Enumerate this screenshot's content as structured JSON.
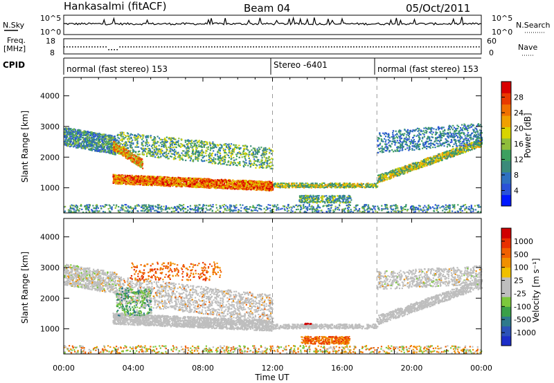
{
  "header": {
    "station": "Hankasalmi (fitACF)",
    "beam": "Beam 04",
    "date": "05/Oct/2011"
  },
  "noise_panel": {
    "left_label": "N.Sky",
    "left_ticks": [
      "10^5",
      "10^0"
    ],
    "right_label": "N.Search",
    "right_ticks": [
      "10^5",
      "10^0"
    ]
  },
  "freq_panel": {
    "left_label_1": "Freq.",
    "left_label_2": "[MHz]",
    "left_ticks": [
      "18",
      "8"
    ],
    "right_label": "Nave",
    "right_ticks": [
      "60",
      "0"
    ]
  },
  "cpid": {
    "label": "CPID",
    "segments": [
      {
        "label": "normal (fast stereo) 153",
        "start_h": 0,
        "end_h": 12
      },
      {
        "label": "Stereo -6401",
        "start_h": 12,
        "end_h": 18
      },
      {
        "label": "normal (fast stereo) 153",
        "start_h": 18,
        "end_h": 24
      }
    ]
  },
  "chart_data": [
    {
      "type": "heatmap",
      "name": "power-panel",
      "ylabel": "Slant Range [km]",
      "yticks": [
        1000,
        2000,
        3000,
        4000
      ],
      "ylim": [
        180,
        4600
      ],
      "xlim": [
        0,
        24
      ],
      "colorbar": {
        "label": "Power [dB]",
        "ticks": [
          "28",
          "24",
          "20",
          "16",
          "12",
          "8",
          "4"
        ],
        "range": [
          0,
          30
        ],
        "colors": [
          "#0018ff",
          "#2a52d8",
          "#2e70c0",
          "#3a8a7a",
          "#3da060",
          "#8fbd3c",
          "#d8d400",
          "#f0a000",
          "#f07000",
          "#e83a00",
          "#d80000"
        ]
      },
      "gap": {
        "start_h": 12,
        "end_h": 18,
        "range_min": 1200
      }
    },
    {
      "type": "heatmap",
      "name": "velocity-panel",
      "ylabel": "Slant Range [km]",
      "yticks": [
        1000,
        2000,
        3000,
        4000
      ],
      "ylim": [
        180,
        4600
      ],
      "xlim": [
        0,
        24
      ],
      "colorbar": {
        "label": "Velocity [m s⁻¹]",
        "ticks": [
          "1000",
          "500",
          "100",
          "25",
          "-25",
          "-100",
          "-500",
          "-1000"
        ],
        "colors": [
          "#1c2ec8",
          "#2c52b8",
          "#2e7a8c",
          "#3aa048",
          "#7cc83c",
          "#bebebe",
          "#bebebe",
          "#f0c000",
          "#f09000",
          "#f06000",
          "#e83000",
          "#d00000"
        ]
      },
      "gap": {
        "start_h": 12,
        "end_h": 18,
        "range_min": 1200
      }
    }
  ],
  "x_axis": {
    "ticks": [
      "00:00",
      "04:00",
      "08:00",
      "12:00",
      "16:00",
      "20:00",
      "00:00"
    ],
    "label": "Time UT"
  }
}
